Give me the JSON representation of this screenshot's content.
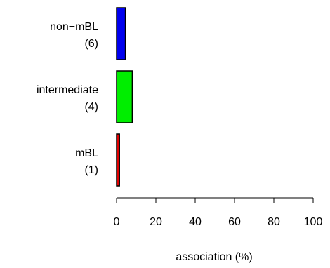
{
  "chart_data": {
    "type": "bar",
    "orientation": "horizontal",
    "categories": [
      {
        "name": "mBL",
        "count": "(1)"
      },
      {
        "name": "intermediate",
        "count": "(4)"
      },
      {
        "name": "non−mBL",
        "count": "(6)"
      }
    ],
    "values": [
      1.5,
      8,
      4.5
    ],
    "bar_colors": [
      "#e00000",
      "#00ee00",
      "#0000ee"
    ],
    "bar_edge_color": "#000000",
    "title": "",
    "xlabel": "association (%)",
    "ylabel": "",
    "xlim": [
      0,
      100
    ],
    "xticks": [
      0,
      20,
      40,
      60,
      80,
      100
    ],
    "grid": false,
    "legend": "none"
  }
}
